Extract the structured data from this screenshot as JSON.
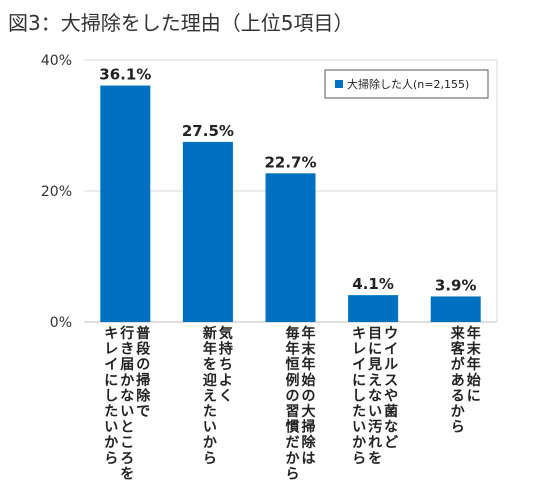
{
  "chart_data": {
    "type": "bar",
    "title": "図3：大掃除をした理由（上位5項目）",
    "series": [
      {
        "name": "大掃除した人(n=2,155)",
        "values": [
          36.1,
          27.5,
          22.7,
          4.1,
          3.9
        ],
        "data_labels": [
          "36.1%",
          "27.5%",
          "22.7%",
          "4.1%",
          "3.9%"
        ]
      }
    ],
    "categories": [
      [
        "普段の掃除で",
        "行き届かないところを",
        "キレイにしたいから"
      ],
      [
        "気持ちよく",
        "新年を迎えたいから"
      ],
      [
        "年末年始の大掃除は",
        "毎年恒例の習慣だから"
      ],
      [
        "ウイルスや菌など",
        "目に見えない汚れを",
        "キレイにしたいから"
      ],
      [
        "年末年始に",
        "来客があるから"
      ]
    ],
    "ylim": [
      0,
      40
    ],
    "yticks": [
      0,
      20,
      40
    ],
    "ytick_labels": [
      "0%",
      "20%",
      "40%"
    ],
    "grid": true,
    "legend_position": "top-right",
    "bar_color": "#0070C0",
    "grid_color": "#D9D9D9"
  }
}
